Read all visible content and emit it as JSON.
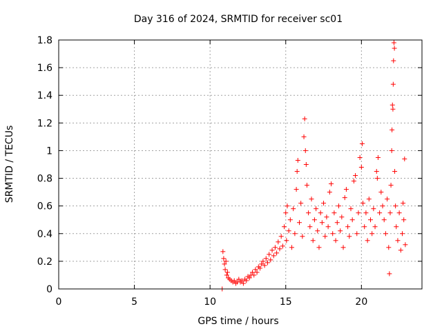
{
  "chart_data": {
    "type": "scatter",
    "title": "Day 316 of 2024, SRMTID for receiver sc01",
    "xlabel": "GPS time / hours",
    "ylabel": "SRMTID / TECUs",
    "xlim": [
      0,
      24
    ],
    "ylim": [
      0,
      1.8
    ],
    "x_ticks": [
      0,
      5,
      10,
      15,
      20
    ],
    "y_ticks": [
      0,
      0.2,
      0.4,
      0.6,
      0.8,
      1,
      1.2,
      1.4,
      1.6,
      1.8
    ],
    "x_tick_labels": [
      "0",
      "5",
      "10",
      "15",
      "20"
    ],
    "y_tick_labels": [
      "0",
      "0.2",
      "0.4",
      "0.6",
      "0.8",
      "1",
      "1.2",
      "1.4",
      "1.6",
      "1.8"
    ],
    "grid": true,
    "marker": "+",
    "color": "#ff0000",
    "series": [
      {
        "name": "sc01",
        "points": [
          [
            10.8,
            0.0
          ],
          [
            10.85,
            0.27
          ],
          [
            10.9,
            0.22
          ],
          [
            10.95,
            0.18
          ],
          [
            11.0,
            0.14
          ],
          [
            11.05,
            0.2
          ],
          [
            11.1,
            0.1
          ],
          [
            11.15,
            0.12
          ],
          [
            11.2,
            0.08
          ],
          [
            11.3,
            0.07
          ],
          [
            11.4,
            0.06
          ],
          [
            11.5,
            0.05
          ],
          [
            11.6,
            0.06
          ],
          [
            11.7,
            0.04
          ],
          [
            11.8,
            0.05
          ],
          [
            11.9,
            0.07
          ],
          [
            12.0,
            0.05
          ],
          [
            12.1,
            0.06
          ],
          [
            12.2,
            0.04
          ],
          [
            12.3,
            0.07
          ],
          [
            12.4,
            0.06
          ],
          [
            12.5,
            0.09
          ],
          [
            12.6,
            0.08
          ],
          [
            12.7,
            0.1
          ],
          [
            12.8,
            0.12
          ],
          [
            12.9,
            0.1
          ],
          [
            13.0,
            0.14
          ],
          [
            13.1,
            0.12
          ],
          [
            13.2,
            0.16
          ],
          [
            13.3,
            0.15
          ],
          [
            13.4,
            0.18
          ],
          [
            13.5,
            0.2
          ],
          [
            13.6,
            0.17
          ],
          [
            13.7,
            0.22
          ],
          [
            13.8,
            0.19
          ],
          [
            13.9,
            0.25
          ],
          [
            14.0,
            0.21
          ],
          [
            14.1,
            0.28
          ],
          [
            14.2,
            0.24
          ],
          [
            14.3,
            0.3
          ],
          [
            14.4,
            0.26
          ],
          [
            14.5,
            0.34
          ],
          [
            14.6,
            0.29
          ],
          [
            14.7,
            0.38
          ],
          [
            14.8,
            0.31
          ],
          [
            14.9,
            0.45
          ],
          [
            15.0,
            0.55
          ],
          [
            15.05,
            0.35
          ],
          [
            15.1,
            0.6
          ],
          [
            15.2,
            0.42
          ],
          [
            15.3,
            0.5
          ],
          [
            15.4,
            0.3
          ],
          [
            15.5,
            0.58
          ],
          [
            15.6,
            0.4
          ],
          [
            15.7,
            0.72
          ],
          [
            15.75,
            0.85
          ],
          [
            15.8,
            0.93
          ],
          [
            15.9,
            0.48
          ],
          [
            16.0,
            0.62
          ],
          [
            16.1,
            0.38
          ],
          [
            16.2,
            1.1
          ],
          [
            16.25,
            1.23
          ],
          [
            16.3,
            1.0
          ],
          [
            16.35,
            0.9
          ],
          [
            16.4,
            0.75
          ],
          [
            16.5,
            0.55
          ],
          [
            16.6,
            0.45
          ],
          [
            16.7,
            0.65
          ],
          [
            16.8,
            0.35
          ],
          [
            16.9,
            0.5
          ],
          [
            17.0,
            0.58
          ],
          [
            17.1,
            0.42
          ],
          [
            17.2,
            0.3
          ],
          [
            17.3,
            0.55
          ],
          [
            17.4,
            0.48
          ],
          [
            17.5,
            0.62
          ],
          [
            17.6,
            0.38
          ],
          [
            17.7,
            0.52
          ],
          [
            17.8,
            0.45
          ],
          [
            17.9,
            0.7
          ],
          [
            18.0,
            0.76
          ],
          [
            18.1,
            0.4
          ],
          [
            18.2,
            0.55
          ],
          [
            18.3,
            0.35
          ],
          [
            18.4,
            0.48
          ],
          [
            18.5,
            0.6
          ],
          [
            18.6,
            0.42
          ],
          [
            18.7,
            0.52
          ],
          [
            18.8,
            0.3
          ],
          [
            18.9,
            0.66
          ],
          [
            19.0,
            0.72
          ],
          [
            19.1,
            0.45
          ],
          [
            19.2,
            0.38
          ],
          [
            19.3,
            0.58
          ],
          [
            19.4,
            0.5
          ],
          [
            19.5,
            0.78
          ],
          [
            19.6,
            0.82
          ],
          [
            19.7,
            0.4
          ],
          [
            19.8,
            0.55
          ],
          [
            19.9,
            0.95
          ],
          [
            20.0,
            0.88
          ],
          [
            20.05,
            1.05
          ],
          [
            20.1,
            0.62
          ],
          [
            20.2,
            0.45
          ],
          [
            20.3,
            0.55
          ],
          [
            20.4,
            0.35
          ],
          [
            20.5,
            0.65
          ],
          [
            20.6,
            0.5
          ],
          [
            20.7,
            0.4
          ],
          [
            20.8,
            0.58
          ],
          [
            20.9,
            0.45
          ],
          [
            21.0,
            0.85
          ],
          [
            21.05,
            0.8
          ],
          [
            21.1,
            0.95
          ],
          [
            21.2,
            0.55
          ],
          [
            21.3,
            0.7
          ],
          [
            21.4,
            0.6
          ],
          [
            21.5,
            0.5
          ],
          [
            21.6,
            0.4
          ],
          [
            21.7,
            0.65
          ],
          [
            21.8,
            0.3
          ],
          [
            21.85,
            0.11
          ],
          [
            21.9,
            0.55
          ],
          [
            21.95,
            0.75
          ],
          [
            22.0,
            1.0
          ],
          [
            22.02,
            1.15
          ],
          [
            22.05,
            1.33
          ],
          [
            22.08,
            1.3
          ],
          [
            22.1,
            1.48
          ],
          [
            22.12,
            1.65
          ],
          [
            22.15,
            1.78
          ],
          [
            22.18,
            1.74
          ],
          [
            22.2,
            0.85
          ],
          [
            22.25,
            0.6
          ],
          [
            22.3,
            0.45
          ],
          [
            22.4,
            0.35
          ],
          [
            22.5,
            0.55
          ],
          [
            22.6,
            0.28
          ],
          [
            22.7,
            0.4
          ],
          [
            22.75,
            0.62
          ],
          [
            22.8,
            0.5
          ],
          [
            22.85,
            0.94
          ],
          [
            22.9,
            0.32
          ]
        ]
      }
    ]
  }
}
